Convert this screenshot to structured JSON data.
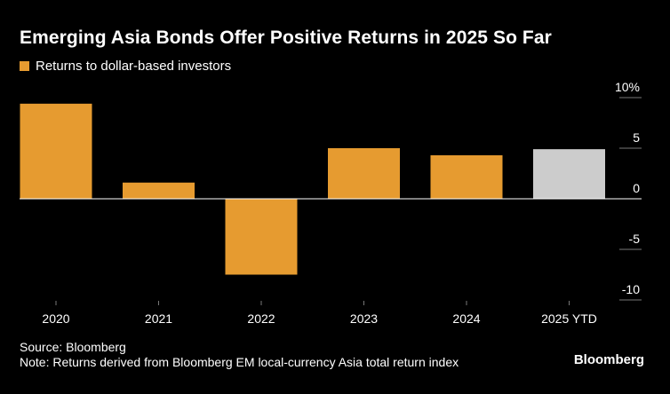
{
  "chart_data": {
    "type": "bar",
    "title": "Emerging Asia Bonds Offer Positive Returns in 2025 So Far",
    "legend": [
      {
        "label": "Returns to dollar-based investors",
        "color": "#e69b30"
      }
    ],
    "categories": [
      "2020",
      "2021",
      "2022",
      "2023",
      "2024",
      "2025 YTD"
    ],
    "values": [
      9.4,
      1.6,
      -7.5,
      5.0,
      4.3,
      4.9
    ],
    "bar_colors": [
      "#e69b30",
      "#e69b30",
      "#e69b30",
      "#e69b30",
      "#e69b30",
      "#cccccc"
    ],
    "y_ticks": [
      10,
      5,
      0,
      -5,
      -10
    ],
    "y_tick_labels": [
      "10%",
      "5",
      "0",
      "-5",
      "-10"
    ],
    "ylim": [
      -10,
      10
    ],
    "xlabel": "",
    "ylabel": "",
    "grid": false
  },
  "footer": {
    "source": "Source: Bloomberg",
    "note": "Note: Returns derived from Bloomberg EM local-currency Asia total return index"
  },
  "brand": "Bloomberg",
  "colors": {
    "background": "#000000",
    "text": "#ffffff",
    "axis": "#ffffff",
    "tick_line": "#777777"
  }
}
